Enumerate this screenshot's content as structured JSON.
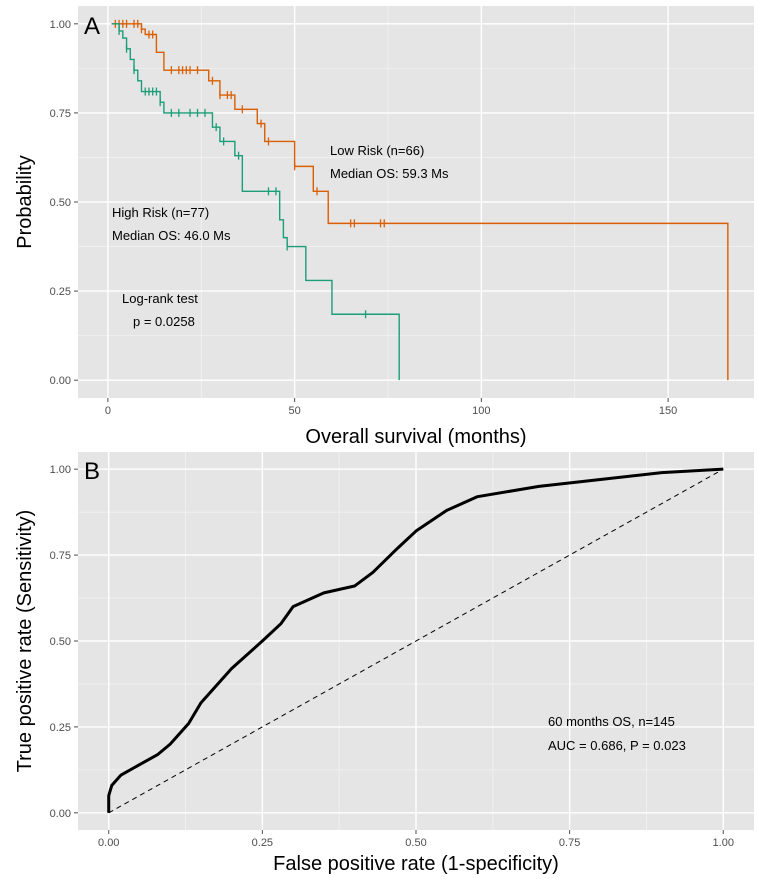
{
  "chart_data": [
    {
      "type": "line",
      "panel_label": "A",
      "xlabel": "Overall survival (months)",
      "ylabel": "Probability",
      "xlim": [
        -8,
        173
      ],
      "ylim": [
        -0.05,
        1.05
      ],
      "xticks": [
        0,
        50,
        100,
        150
      ],
      "yticks": [
        0.0,
        0.25,
        0.5,
        0.75,
        1.0
      ],
      "xtick_labels": [
        "0",
        "50",
        "100",
        "150"
      ],
      "ytick_labels": [
        "0.00",
        "0.25",
        "0.50",
        "0.75",
        "1.00"
      ],
      "grid": true,
      "series": [
        {
          "label_lines": [
            "Low Risk (n=66)",
            "Median OS: 59.3 Ms"
          ],
          "color": "#d95f02",
          "steps": [
            [
              1,
              1.0
            ],
            [
              9,
              0.985
            ],
            [
              10,
              0.97
            ],
            [
              13,
              0.92
            ],
            [
              15,
              0.87
            ],
            [
              27,
              0.84
            ],
            [
              30,
              0.8
            ],
            [
              34,
              0.76
            ],
            [
              40,
              0.72
            ],
            [
              42,
              0.67
            ],
            [
              50,
              0.6
            ],
            [
              55,
              0.53
            ],
            [
              59,
              0.44
            ],
            [
              166,
              0.44
            ],
            [
              166,
              0.0
            ]
          ],
          "censor_x": [
            2,
            3,
            4,
            5,
            7,
            8,
            9,
            11,
            12,
            17,
            19,
            20,
            21,
            22,
            24,
            28,
            30,
            32,
            33,
            36,
            41,
            43,
            50,
            56,
            65,
            66,
            73,
            74
          ]
        },
        {
          "label_lines": [
            "High Risk (n=77)",
            "Median OS: 46.0 Ms"
          ],
          "color": "#1b9e77",
          "steps": [
            [
              1,
              1.0
            ],
            [
              3,
              0.98
            ],
            [
              4,
              0.96
            ],
            [
              5,
              0.93
            ],
            [
              6,
              0.9
            ],
            [
              7,
              0.87
            ],
            [
              8,
              0.84
            ],
            [
              9,
              0.81
            ],
            [
              14,
              0.78
            ],
            [
              15,
              0.75
            ],
            [
              28,
              0.71
            ],
            [
              30,
              0.67
            ],
            [
              34,
              0.63
            ],
            [
              36,
              0.53
            ],
            [
              43,
              0.53
            ],
            [
              46,
              0.45
            ],
            [
              47,
              0.4
            ],
            [
              48,
              0.375
            ],
            [
              53,
              0.28
            ],
            [
              60,
              0.185
            ],
            [
              78,
              0.185
            ],
            [
              78,
              0.0
            ]
          ],
          "censor_x": [
            3,
            5,
            7,
            10,
            11,
            12,
            13,
            14,
            17,
            19,
            22,
            24,
            26,
            29,
            31,
            35,
            43,
            45,
            48,
            69
          ]
        }
      ],
      "annotation_lines": [
        "Log-rank test",
        "p = 0.0258"
      ]
    },
    {
      "type": "line",
      "panel_label": "B",
      "xlabel": "False positive rate (1-specificity)",
      "ylabel": "True positive rate (Sensitivity)",
      "xlim": [
        -0.05,
        1.05
      ],
      "ylim": [
        -0.05,
        1.05
      ],
      "xticks": [
        0.0,
        0.25,
        0.5,
        0.75,
        1.0
      ],
      "yticks": [
        0.0,
        0.25,
        0.5,
        0.75,
        1.0
      ],
      "xtick_labels": [
        "0.00",
        "0.25",
        "0.50",
        "0.75",
        "1.00"
      ],
      "ytick_labels": [
        "0.00",
        "0.25",
        "0.50",
        "0.75",
        "1.00"
      ],
      "grid": true,
      "roc": {
        "color": "#000000",
        "x": [
          0.0,
          0.0,
          0.005,
          0.02,
          0.05,
          0.08,
          0.1,
          0.13,
          0.15,
          0.2,
          0.25,
          0.28,
          0.3,
          0.35,
          0.4,
          0.43,
          0.47,
          0.5,
          0.55,
          0.6,
          0.7,
          0.8,
          0.9,
          1.0
        ],
        "y": [
          0.0,
          0.05,
          0.08,
          0.11,
          0.14,
          0.17,
          0.2,
          0.26,
          0.32,
          0.42,
          0.5,
          0.55,
          0.6,
          0.64,
          0.66,
          0.7,
          0.77,
          0.82,
          0.88,
          0.92,
          0.95,
          0.97,
          0.99,
          1.0
        ]
      },
      "reference_line": {
        "x": [
          0.0,
          1.0
        ],
        "y": [
          0.0,
          1.0
        ],
        "style": "dashed"
      },
      "annotation_lines": [
        "60 months OS, n=145",
        "AUC = 0.686, P = 0.023"
      ]
    }
  ]
}
